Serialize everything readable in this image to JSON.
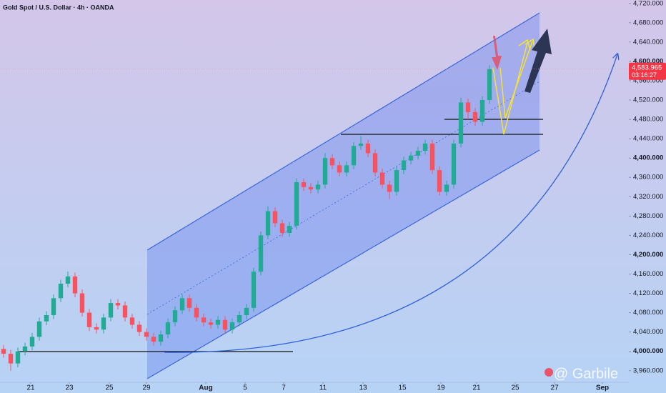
{
  "chart_data": {
    "type": "candlestick",
    "title": "Gold Spot / U.S. Dollar · 4h · OANDA",
    "watermark": "@ Garbile",
    "up_color": "#22ab94",
    "down_color": "#f7525f",
    "grid": false,
    "xlim": [
      -0.5,
      87.5
    ],
    "xticks": [
      {
        "value": 3.8,
        "label": "21"
      },
      {
        "value": 9.2,
        "label": "23"
      },
      {
        "value": 14.8,
        "label": "25"
      },
      {
        "value": 20,
        "label": "29"
      },
      {
        "value": 28.3,
        "label": "Aug"
      },
      {
        "value": 33.8,
        "label": "5"
      },
      {
        "value": 39.2,
        "label": "7"
      },
      {
        "value": 44.7,
        "label": "11"
      },
      {
        "value": 50.3,
        "label": "13"
      },
      {
        "value": 55.8,
        "label": "15"
      },
      {
        "value": 61.2,
        "label": "19"
      },
      {
        "value": 66.2,
        "label": "21"
      },
      {
        "value": 71.6,
        "label": "25"
      },
      {
        "value": 77.1,
        "label": "27"
      },
      {
        "value": 83.8,
        "label": "Sep"
      }
    ],
    "ylim": [
      3936,
      4727
    ],
    "yticks": [
      {
        "value": 3960,
        "label": "3,960.000"
      },
      {
        "value": 4000,
        "label": "4,000.000"
      },
      {
        "value": 4040,
        "label": "4,040.000"
      },
      {
        "value": 4080,
        "label": "4,080.000"
      },
      {
        "value": 4120,
        "label": "4,120.000"
      },
      {
        "value": 4160,
        "label": "4,160.000"
      },
      {
        "value": 4200,
        "label": "4,200.000"
      },
      {
        "value": 4240,
        "label": "4,240.000"
      },
      {
        "value": 4280,
        "label": "4,280.000"
      },
      {
        "value": 4320,
        "label": "4,320.000"
      },
      {
        "value": 4360,
        "label": "4,360.000"
      },
      {
        "value": 4400,
        "label": "4,400.000"
      },
      {
        "value": 4440,
        "label": "4,440.000"
      },
      {
        "value": 4480,
        "label": "4,480.000"
      },
      {
        "value": 4520,
        "label": "4,520.000"
      },
      {
        "value": 4560,
        "label": "4,560.000"
      },
      {
        "value": 4600,
        "label": "4,600.000"
      },
      {
        "value": 4640,
        "label": "4,640.000"
      },
      {
        "value": 4680,
        "label": "4,680.000"
      },
      {
        "value": 4720,
        "label": "4,720.000"
      }
    ],
    "last_price": {
      "value": 4583.965,
      "label": "4,583.965"
    },
    "countdown": "03:16:27",
    "open": [
      4005,
      3995,
      3975,
      4000,
      4010,
      4030,
      4062,
      4075,
      4110,
      4140,
      4155,
      4120,
      4080,
      4050,
      4045,
      4070,
      4100,
      4095,
      4070,
      4055,
      4040,
      4030,
      4020,
      4035,
      4060,
      4085,
      4110,
      4090,
      4070,
      4060,
      4055,
      4065,
      4045,
      4060,
      4075,
      4090,
      4165,
      4240,
      4290,
      4265,
      4245,
      4260,
      4350,
      4340,
      4335,
      4345,
      4400,
      4385,
      4370,
      4385,
      4425,
      4430,
      4410,
      4370,
      4345,
      4330,
      4375,
      4395,
      4405,
      4415,
      4430,
      4375,
      4330,
      4345,
      4430,
      4515,
      4495,
      4475,
      4520
    ],
    "high": [
      4013,
      4003,
      4008,
      4018,
      4038,
      4070,
      4083,
      4118,
      4148,
      4165,
      4163,
      4128,
      4088,
      4058,
      4078,
      4108,
      4108,
      4103,
      4078,
      4063,
      4048,
      4038,
      4043,
      4068,
      4093,
      4118,
      4118,
      4098,
      4078,
      4068,
      4073,
      4073,
      4068,
      4083,
      4098,
      4173,
      4248,
      4300,
      4298,
      4273,
      4268,
      4358,
      4358,
      4348,
      4353,
      4410,
      4408,
      4393,
      4393,
      4433,
      4445,
      4438,
      4418,
      4378,
      4353,
      4383,
      4403,
      4413,
      4423,
      4438,
      4438,
      4383,
      4353,
      4438,
      4525,
      4523,
      4503,
      4528,
      4592
    ],
    "low": [
      3987,
      3960,
      3967,
      3992,
      4002,
      4022,
      4054,
      4067,
      4102,
      4132,
      4112,
      4072,
      4042,
      4037,
      4037,
      4062,
      4087,
      4062,
      4047,
      4032,
      4022,
      4012,
      4012,
      4027,
      4052,
      4077,
      4082,
      4062,
      4052,
      4047,
      4047,
      4037,
      4037,
      4052,
      4067,
      4082,
      4157,
      4232,
      4257,
      4237,
      4237,
      4252,
      4332,
      4327,
      4327,
      4337,
      4377,
      4362,
      4362,
      4377,
      4417,
      4402,
      4362,
      4337,
      4315,
      4322,
      4367,
      4387,
      4397,
      4407,
      4367,
      4322,
      4322,
      4337,
      4422,
      4480,
      4467,
      4467,
      4512
    ],
    "close": [
      3995,
      3975,
      4000,
      4010,
      4030,
      4062,
      4075,
      4110,
      4140,
      4155,
      4120,
      4080,
      4050,
      4045,
      4070,
      4100,
      4095,
      4070,
      4055,
      4040,
      4030,
      4020,
      4035,
      4060,
      4085,
      4110,
      4090,
      4070,
      4060,
      4055,
      4065,
      4045,
      4060,
      4075,
      4090,
      4165,
      4240,
      4290,
      4265,
      4245,
      4260,
      4350,
      4340,
      4335,
      4345,
      4400,
      4385,
      4370,
      4385,
      4425,
      4430,
      4410,
      4370,
      4345,
      4330,
      4375,
      4395,
      4405,
      4415,
      4430,
      4375,
      4330,
      4345,
      4430,
      4515,
      4495,
      4475,
      4520,
      4583.965
    ]
  }
}
